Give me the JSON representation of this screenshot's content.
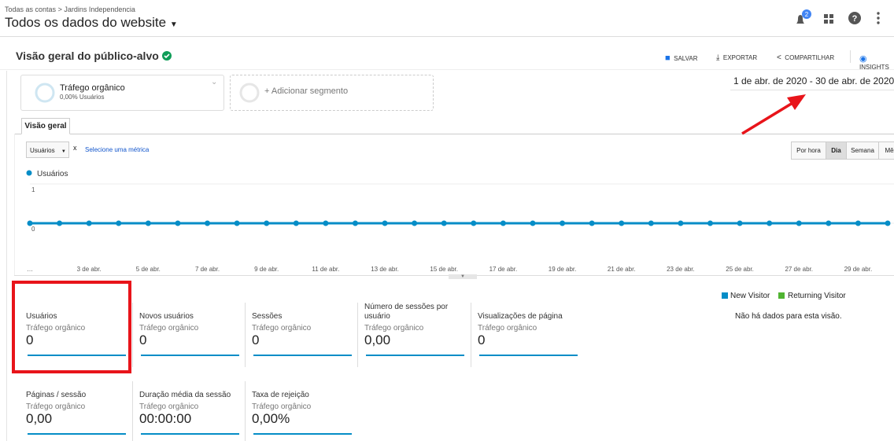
{
  "header": {
    "breadcrumb": [
      "Todas as contas",
      "Jardins Independencia"
    ],
    "separator": ">",
    "property": "Todos os dados do website",
    "notifications": "2"
  },
  "report": {
    "title": "Visão geral do público-alvo",
    "actions": [
      "SALVAR",
      "EXPORTAR",
      "COMPARTILHAR",
      "INSIGHTS"
    ]
  },
  "segments": {
    "active": {
      "name": "Tráfego orgânico",
      "detail": "0,00% Usuários"
    },
    "add": "+ Adicionar segmento"
  },
  "date_range": "1 de abr. de 2020 - 30 de abr. de 2020",
  "tab": "Visão geral",
  "metric_picker": {
    "metric": "Usuários",
    "remove": "x",
    "select": "Selecione uma métrica"
  },
  "granularity": [
    "Por hora",
    "Dia",
    "Semana",
    "Mês"
  ],
  "chart_data": {
    "type": "line",
    "categories": [
      "…",
      null,
      "3 de abr.",
      null,
      "5 de abr.",
      null,
      "7 de abr.",
      null,
      "9 de abr.",
      null,
      "11 de abr.",
      null,
      "13 de abr.",
      null,
      "15 de abr.",
      null,
      "17 de abr.",
      null,
      "19 de abr.",
      null,
      "21 de abr.",
      null,
      "23 de abr.",
      null,
      "25 de abr.",
      null,
      "27 de abr.",
      null,
      "29 de abr.",
      null
    ],
    "series": [
      {
        "name": "Usuários",
        "color": "#058dc7",
        "values": [
          0,
          0,
          0,
          0,
          0,
          0,
          0,
          0,
          0,
          0,
          0,
          0,
          0,
          0,
          0,
          0,
          0,
          0,
          0,
          0,
          0,
          0,
          0,
          0,
          0,
          0,
          0,
          0,
          0,
          0
        ]
      }
    ],
    "ylim": [
      0,
      1
    ],
    "yticks": [
      0,
      1
    ],
    "grid": true
  },
  "visitor_legend": {
    "items": [
      "New Visitor",
      "Returning Visitor"
    ],
    "empty": "Não há dados para esta visão."
  },
  "metrics": [
    {
      "name": "Usuários",
      "segment": "Tráfego orgânico",
      "value": "0"
    },
    {
      "name": "Novos usuários",
      "segment": "Tráfego orgânico",
      "value": "0"
    },
    {
      "name": "Sessões",
      "segment": "Tráfego orgânico",
      "value": "0"
    },
    {
      "name": "Número de sessões por usuário",
      "segment": "Tráfego orgânico",
      "value": "0,00"
    },
    {
      "name": "Visualizações de página",
      "segment": "Tráfego orgânico",
      "value": "0"
    },
    {
      "name": "Páginas / sessão",
      "segment": "Tráfego orgânico",
      "value": "0,00"
    },
    {
      "name": "Duração média da sessão",
      "segment": "Tráfego orgânico",
      "value": "00:00:00"
    },
    {
      "name": "Taxa de rejeição",
      "segment": "Tráfego orgânico",
      "value": "0,00%"
    }
  ]
}
